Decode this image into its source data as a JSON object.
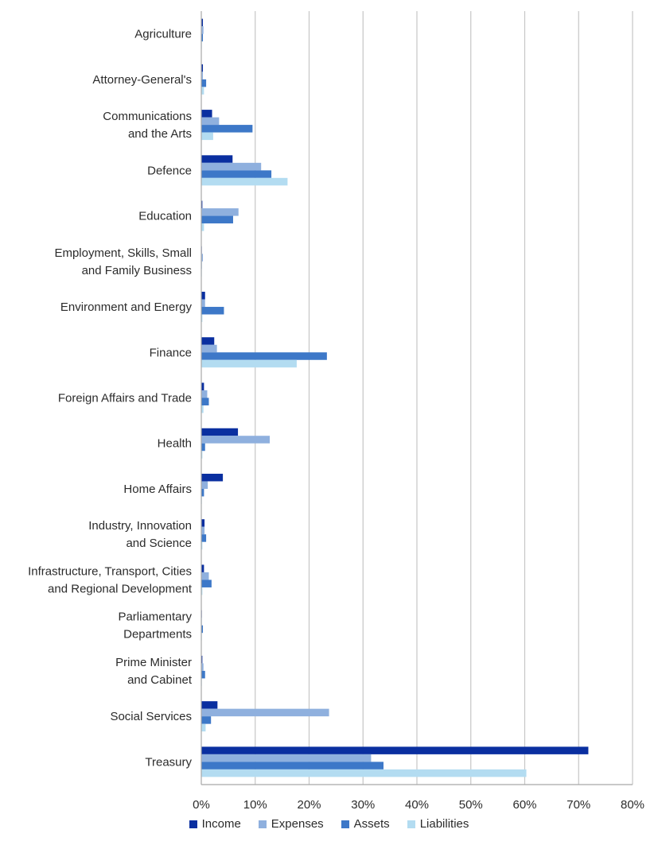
{
  "chart_data": {
    "type": "bar",
    "orientation": "horizontal",
    "categories": [
      [
        "Agriculture"
      ],
      [
        "Attorney-General's"
      ],
      [
        "Communications",
        "and the Arts"
      ],
      [
        "Defence"
      ],
      [
        "Education"
      ],
      [
        "Employment, Skills, Small",
        "and Family Business"
      ],
      [
        "Environment and Energy"
      ],
      [
        "Finance"
      ],
      [
        "Foreign Affairs and Trade"
      ],
      [
        "Health"
      ],
      [
        "Home Affairs"
      ],
      [
        "Industry, Innovation",
        "and Science"
      ],
      [
        "Infrastructure, Transport, Cities",
        "and Regional Development"
      ],
      [
        "Parliamentary",
        "Departments"
      ],
      [
        "Prime Minister",
        "and Cabinet"
      ],
      [
        "Social Services"
      ],
      [
        "Treasury"
      ]
    ],
    "series": [
      {
        "name": "Income",
        "color": "#0a2fa0",
        "values": [
          0.3,
          0.3,
          2.0,
          5.8,
          0.2,
          0.1,
          0.7,
          2.4,
          0.5,
          6.8,
          4.0,
          0.6,
          0.5,
          0.1,
          0.2,
          3.0,
          71.8
        ]
      },
      {
        "name": "Expenses",
        "color": "#8fb0de",
        "values": [
          0.4,
          0.3,
          3.3,
          11.1,
          6.9,
          0.3,
          0.7,
          2.9,
          1.1,
          12.7,
          1.2,
          0.6,
          1.4,
          0.1,
          0.4,
          23.7,
          31.5
        ]
      },
      {
        "name": "Assets",
        "color": "#3d78c8",
        "values": [
          0.3,
          0.9,
          9.5,
          13.0,
          5.9,
          0.1,
          4.2,
          23.3,
          1.4,
          0.7,
          0.5,
          0.9,
          1.9,
          0.3,
          0.7,
          1.8,
          33.8
        ]
      },
      {
        "name": "Liabilities",
        "color": "#b3dcf1",
        "values": [
          0.1,
          0.5,
          2.2,
          16.0,
          0.5,
          0.1,
          0.2,
          17.7,
          0.4,
          0.2,
          0.1,
          0.2,
          0.2,
          0.1,
          0.1,
          0.8,
          60.3
        ]
      }
    ],
    "xlim": [
      0,
      80
    ],
    "xticks": [
      0,
      10,
      20,
      30,
      40,
      50,
      60,
      70,
      80
    ],
    "tick_suffix": "%",
    "grid": true,
    "legend_position": "bottom"
  }
}
